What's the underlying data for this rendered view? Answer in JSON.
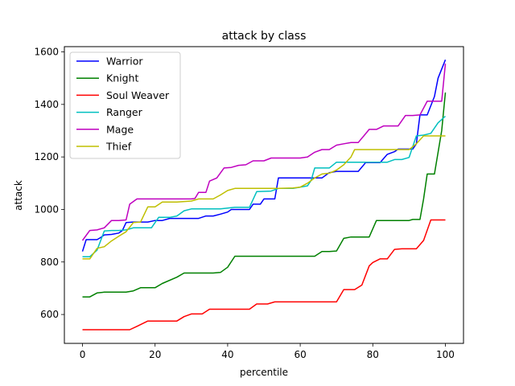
{
  "chart_data": {
    "type": "line",
    "title": "attack by class",
    "xlabel": "percentile",
    "ylabel": "attack",
    "xlim": [
      -5,
      105
    ],
    "ylim": [
      490,
      1620
    ],
    "xticks": [
      0,
      20,
      40,
      60,
      80,
      100
    ],
    "yticks": [
      600,
      800,
      1000,
      1200,
      1400,
      1600
    ],
    "grid": false,
    "legend_position": "top-left",
    "series": [
      {
        "name": "Warrior",
        "color": "#0000ff",
        "points": [
          [
            0,
            840
          ],
          [
            1,
            885
          ],
          [
            2,
            885
          ],
          [
            4,
            885
          ],
          [
            5,
            893
          ],
          [
            6,
            903
          ],
          [
            8,
            905
          ],
          [
            10,
            910
          ],
          [
            11,
            920
          ],
          [
            12,
            950
          ],
          [
            14,
            952
          ],
          [
            16,
            952
          ],
          [
            18,
            952
          ],
          [
            20,
            958
          ],
          [
            22,
            958
          ],
          [
            24,
            966
          ],
          [
            26,
            966
          ],
          [
            28,
            966
          ],
          [
            30,
            966
          ],
          [
            32,
            966
          ],
          [
            34,
            975
          ],
          [
            36,
            975
          ],
          [
            38,
            982
          ],
          [
            40,
            990
          ],
          [
            41,
            1000
          ],
          [
            43,
            1000
          ],
          [
            46,
            1000
          ],
          [
            47,
            1020
          ],
          [
            49,
            1020
          ],
          [
            50,
            1040
          ],
          [
            53,
            1040
          ],
          [
            54,
            1120
          ],
          [
            58,
            1120
          ],
          [
            62,
            1120
          ],
          [
            64,
            1120
          ],
          [
            66,
            1120
          ],
          [
            68,
            1140
          ],
          [
            70,
            1145
          ],
          [
            76,
            1145
          ],
          [
            78,
            1178
          ],
          [
            82,
            1178
          ],
          [
            84,
            1210
          ],
          [
            86,
            1220
          ],
          [
            87,
            1230
          ],
          [
            89,
            1230
          ],
          [
            91,
            1230
          ],
          [
            92,
            1250
          ],
          [
            93,
            1360
          ],
          [
            95,
            1360
          ],
          [
            97,
            1430
          ],
          [
            98,
            1500
          ],
          [
            100,
            1570
          ]
        ]
      },
      {
        "name": "Knight",
        "color": "#008000",
        "points": [
          [
            0,
            667
          ],
          [
            2,
            667
          ],
          [
            4,
            682
          ],
          [
            6,
            685
          ],
          [
            8,
            685
          ],
          [
            10,
            685
          ],
          [
            12,
            685
          ],
          [
            14,
            690
          ],
          [
            16,
            702
          ],
          [
            20,
            702
          ],
          [
            22,
            718
          ],
          [
            26,
            742
          ],
          [
            28,
            758
          ],
          [
            34,
            758
          ],
          [
            36,
            758
          ],
          [
            38,
            760
          ],
          [
            40,
            780
          ],
          [
            42,
            822
          ],
          [
            44,
            822
          ],
          [
            60,
            822
          ],
          [
            64,
            822
          ],
          [
            66,
            840
          ],
          [
            68,
            840
          ],
          [
            70,
            842
          ],
          [
            72,
            890
          ],
          [
            74,
            895
          ],
          [
            78,
            895
          ],
          [
            79,
            895
          ],
          [
            81,
            958
          ],
          [
            84,
            958
          ],
          [
            90,
            958
          ],
          [
            91,
            962
          ],
          [
            93,
            962
          ],
          [
            94,
            1040
          ],
          [
            95,
            1135
          ],
          [
            97,
            1135
          ],
          [
            99,
            1300
          ],
          [
            100,
            1445
          ]
        ]
      },
      {
        "name": "Soul Weaver",
        "color": "#ff0000",
        "points": [
          [
            0,
            542
          ],
          [
            8,
            542
          ],
          [
            13,
            542
          ],
          [
            15,
            555
          ],
          [
            18,
            575
          ],
          [
            22,
            575
          ],
          [
            26,
            575
          ],
          [
            28,
            592
          ],
          [
            30,
            602
          ],
          [
            33,
            602
          ],
          [
            35,
            620
          ],
          [
            42,
            620
          ],
          [
            46,
            620
          ],
          [
            48,
            640
          ],
          [
            51,
            640
          ],
          [
            53,
            648
          ],
          [
            60,
            648
          ],
          [
            66,
            648
          ],
          [
            70,
            648
          ],
          [
            72,
            695
          ],
          [
            75,
            695
          ],
          [
            77,
            712
          ],
          [
            79,
            785
          ],
          [
            80,
            798
          ],
          [
            82,
            812
          ],
          [
            84,
            812
          ],
          [
            86,
            848
          ],
          [
            88,
            850
          ],
          [
            90,
            850
          ],
          [
            92,
            850
          ],
          [
            94,
            882
          ],
          [
            96,
            960
          ],
          [
            98,
            960
          ],
          [
            100,
            960
          ]
        ]
      },
      {
        "name": "Ranger",
        "color": "#00bfbf",
        "points": [
          [
            0,
            820
          ],
          [
            2,
            820
          ],
          [
            4,
            845
          ],
          [
            6,
            918
          ],
          [
            8,
            920
          ],
          [
            10,
            920
          ],
          [
            12,
            922
          ],
          [
            14,
            930
          ],
          [
            16,
            930
          ],
          [
            19,
            930
          ],
          [
            21,
            970
          ],
          [
            24,
            970
          ],
          [
            26,
            975
          ],
          [
            28,
            995
          ],
          [
            30,
            1002
          ],
          [
            34,
            1002
          ],
          [
            38,
            1002
          ],
          [
            42,
            1008
          ],
          [
            46,
            1008
          ],
          [
            48,
            1068
          ],
          [
            52,
            1070
          ],
          [
            54,
            1080
          ],
          [
            58,
            1080
          ],
          [
            60,
            1085
          ],
          [
            62,
            1090
          ],
          [
            63,
            1110
          ],
          [
            64,
            1158
          ],
          [
            68,
            1158
          ],
          [
            70,
            1180
          ],
          [
            74,
            1180
          ],
          [
            78,
            1180
          ],
          [
            84,
            1180
          ],
          [
            86,
            1190
          ],
          [
            88,
            1190
          ],
          [
            90,
            1198
          ],
          [
            92,
            1280
          ],
          [
            94,
            1283
          ],
          [
            96,
            1290
          ],
          [
            98,
            1330
          ],
          [
            100,
            1355
          ]
        ]
      },
      {
        "name": "Mage",
        "color": "#bf00bf",
        "points": [
          [
            0,
            882
          ],
          [
            2,
            920
          ],
          [
            4,
            922
          ],
          [
            6,
            930
          ],
          [
            8,
            958
          ],
          [
            10,
            958
          ],
          [
            12,
            960
          ],
          [
            13,
            1020
          ],
          [
            15,
            1040
          ],
          [
            18,
            1040
          ],
          [
            22,
            1040
          ],
          [
            26,
            1040
          ],
          [
            30,
            1040
          ],
          [
            31,
            1042
          ],
          [
            32,
            1065
          ],
          [
            34,
            1065
          ],
          [
            35,
            1108
          ],
          [
            37,
            1120
          ],
          [
            39,
            1158
          ],
          [
            41,
            1160
          ],
          [
            43,
            1168
          ],
          [
            45,
            1170
          ],
          [
            47,
            1185
          ],
          [
            50,
            1185
          ],
          [
            52,
            1196
          ],
          [
            56,
            1196
          ],
          [
            60,
            1196
          ],
          [
            62,
            1200
          ],
          [
            64,
            1218
          ],
          [
            66,
            1228
          ],
          [
            68,
            1228
          ],
          [
            70,
            1245
          ],
          [
            72,
            1250
          ],
          [
            74,
            1255
          ],
          [
            76,
            1255
          ],
          [
            78,
            1288
          ],
          [
            79,
            1305
          ],
          [
            81,
            1305
          ],
          [
            83,
            1318
          ],
          [
            85,
            1318
          ],
          [
            87,
            1318
          ],
          [
            89,
            1358
          ],
          [
            91,
            1358
          ],
          [
            93,
            1360
          ],
          [
            95,
            1412
          ],
          [
            97,
            1412
          ],
          [
            99,
            1412
          ],
          [
            100,
            1555
          ]
        ]
      },
      {
        "name": "Thief",
        "color": "#bfbf00",
        "points": [
          [
            0,
            812
          ],
          [
            2,
            812
          ],
          [
            4,
            852
          ],
          [
            6,
            858
          ],
          [
            8,
            880
          ],
          [
            10,
            898
          ],
          [
            12,
            915
          ],
          [
            14,
            950
          ],
          [
            16,
            952
          ],
          [
            18,
            1010
          ],
          [
            20,
            1010
          ],
          [
            22,
            1028
          ],
          [
            26,
            1028
          ],
          [
            30,
            1032
          ],
          [
            32,
            1040
          ],
          [
            36,
            1040
          ],
          [
            38,
            1055
          ],
          [
            40,
            1072
          ],
          [
            42,
            1080
          ],
          [
            46,
            1080
          ],
          [
            50,
            1080
          ],
          [
            54,
            1080
          ],
          [
            58,
            1082
          ],
          [
            60,
            1085
          ],
          [
            62,
            1100
          ],
          [
            64,
            1120
          ],
          [
            66,
            1135
          ],
          [
            68,
            1138
          ],
          [
            70,
            1150
          ],
          [
            72,
            1170
          ],
          [
            74,
            1200
          ],
          [
            75,
            1228
          ],
          [
            80,
            1228
          ],
          [
            86,
            1228
          ],
          [
            90,
            1228
          ],
          [
            92,
            1250
          ],
          [
            94,
            1280
          ],
          [
            98,
            1280
          ],
          [
            100,
            1280
          ]
        ]
      }
    ]
  }
}
